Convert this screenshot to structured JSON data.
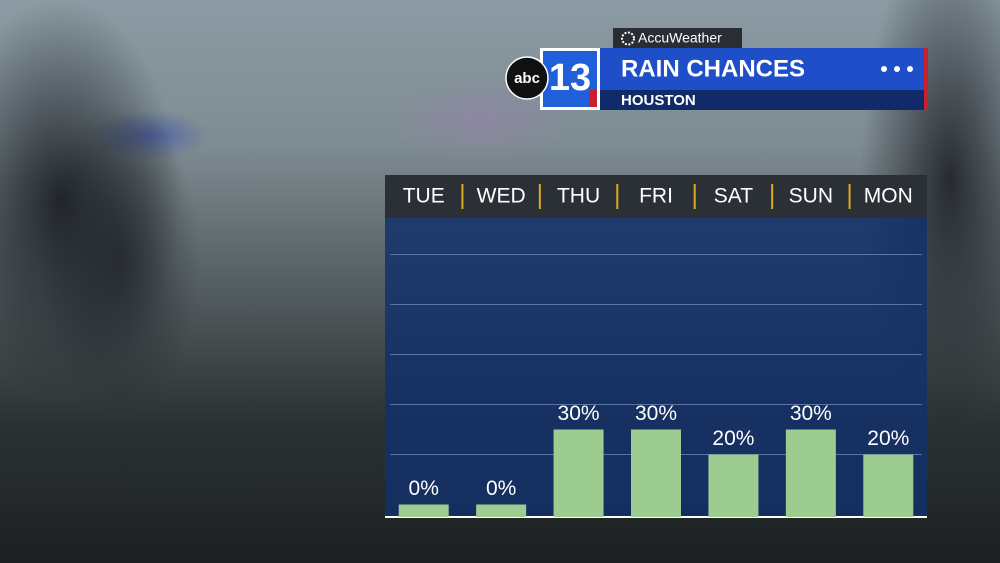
{
  "header": {
    "brand": "AccuWeather",
    "network": "abc",
    "channel": "13",
    "title": "RAIN CHANCES",
    "location": "HOUSTON"
  },
  "chart_data": {
    "type": "bar",
    "categories": [
      "TUE",
      "WED",
      "THU",
      "FRI",
      "SAT",
      "SUN",
      "MON"
    ],
    "values": [
      0,
      0,
      30,
      30,
      20,
      30,
      20
    ],
    "value_labels": [
      "0%",
      "0%",
      "30%",
      "30%",
      "20%",
      "30%",
      "20%"
    ],
    "color": "#9ccc8f",
    "ylim": [
      -5,
      115
    ],
    "yticks": [
      20,
      40,
      60,
      80,
      100
    ],
    "grid": true
  }
}
